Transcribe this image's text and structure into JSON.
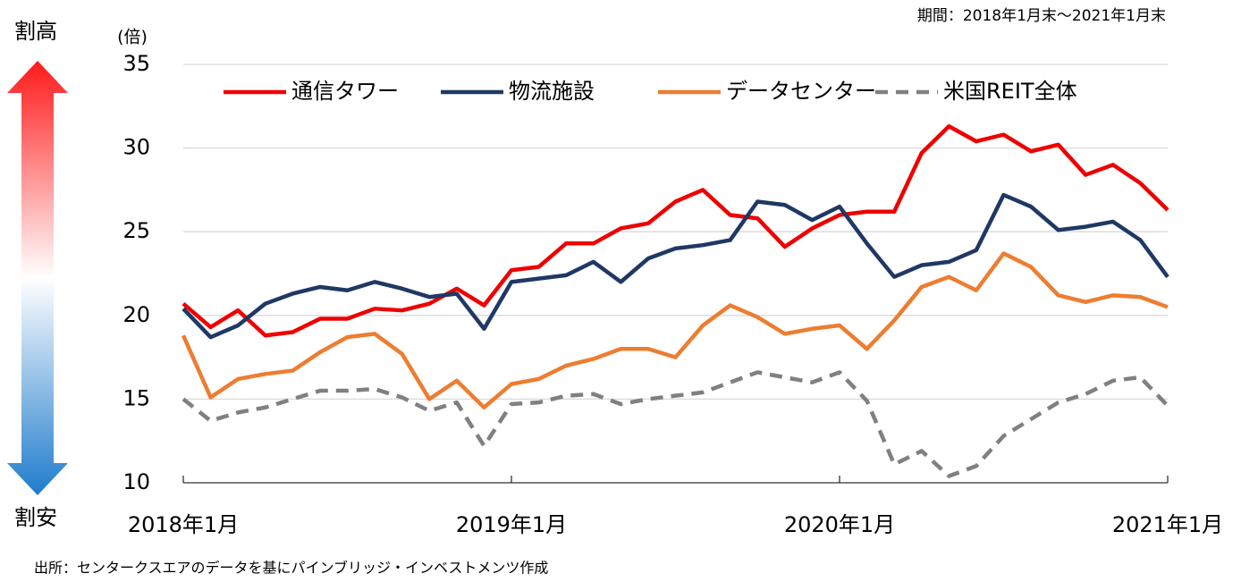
{
  "chart_data": {
    "type": "line",
    "y_label": "(倍)",
    "period": "期間：2018年1月末～2021年1月末",
    "high_label": "割高",
    "low_label": "割安",
    "source": "出所：センタークスエアのデータを基にパインブリッジ・インベストメンツ作成",
    "categories": [
      "2018年1月",
      null,
      null,
      null,
      null,
      null,
      null,
      null,
      null,
      null,
      null,
      null,
      "2019年1月",
      null,
      null,
      null,
      null,
      null,
      null,
      null,
      null,
      null,
      null,
      null,
      "2020年1月",
      null,
      null,
      null,
      null,
      null,
      null,
      null,
      null,
      null,
      null,
      null,
      "2021年1月"
    ],
    "ylim": [
      10,
      35
    ],
    "yticks": [
      10,
      15,
      20,
      25,
      30,
      35
    ],
    "grid": true,
    "series": [
      {
        "name": "通信タワー",
        "color": "#ee0000",
        "dash": false,
        "values": [
          20.7,
          19.3,
          20.3,
          18.8,
          19.0,
          19.8,
          19.8,
          20.4,
          20.3,
          20.7,
          21.6,
          20.6,
          22.7,
          22.9,
          24.3,
          24.3,
          25.2,
          25.5,
          26.8,
          27.5,
          26.0,
          25.8,
          24.1,
          25.2,
          26.0,
          26.2,
          26.2,
          29.7,
          31.3,
          30.4,
          30.8,
          29.8,
          30.2,
          28.4,
          29.0,
          27.9,
          26.3
        ]
      },
      {
        "name": "物流施設",
        "color": "#1f3864",
        "dash": false,
        "values": [
          20.4,
          18.7,
          19.4,
          20.7,
          21.3,
          21.7,
          21.5,
          22.0,
          21.6,
          21.1,
          21.3,
          19.2,
          22.0,
          22.2,
          22.4,
          23.2,
          22.0,
          23.4,
          24.0,
          24.2,
          24.5,
          26.8,
          26.6,
          25.7,
          26.5,
          24.3,
          22.3,
          23.0,
          23.2,
          23.9,
          27.2,
          26.5,
          25.1,
          25.3,
          25.6,
          24.5,
          22.3
        ]
      },
      {
        "name": "データセンター",
        "color": "#ed7d31",
        "dash": false,
        "values": [
          18.8,
          15.1,
          16.2,
          16.5,
          16.7,
          17.8,
          18.7,
          18.9,
          17.7,
          15.0,
          16.1,
          14.5,
          15.9,
          16.2,
          17.0,
          17.4,
          18.0,
          18.0,
          17.5,
          19.4,
          20.6,
          19.9,
          18.9,
          19.2,
          19.4,
          18.0,
          19.7,
          21.7,
          22.3,
          21.5,
          23.7,
          22.9,
          21.2,
          20.8,
          21.2,
          21.1,
          20.5
        ]
      },
      {
        "name": "米国REIT全体",
        "color": "#808080",
        "dash": true,
        "values": [
          15.0,
          13.7,
          14.2,
          14.5,
          15.0,
          15.5,
          15.5,
          15.6,
          15.1,
          14.3,
          14.8,
          12.2,
          14.7,
          14.8,
          15.2,
          15.3,
          14.7,
          15.0,
          15.2,
          15.4,
          16.0,
          16.6,
          16.3,
          16.0,
          16.6,
          14.9,
          11.1,
          11.9,
          10.4,
          11.0,
          12.8,
          13.8,
          14.8,
          15.3,
          16.1,
          16.3,
          14.6
        ]
      }
    ]
  }
}
